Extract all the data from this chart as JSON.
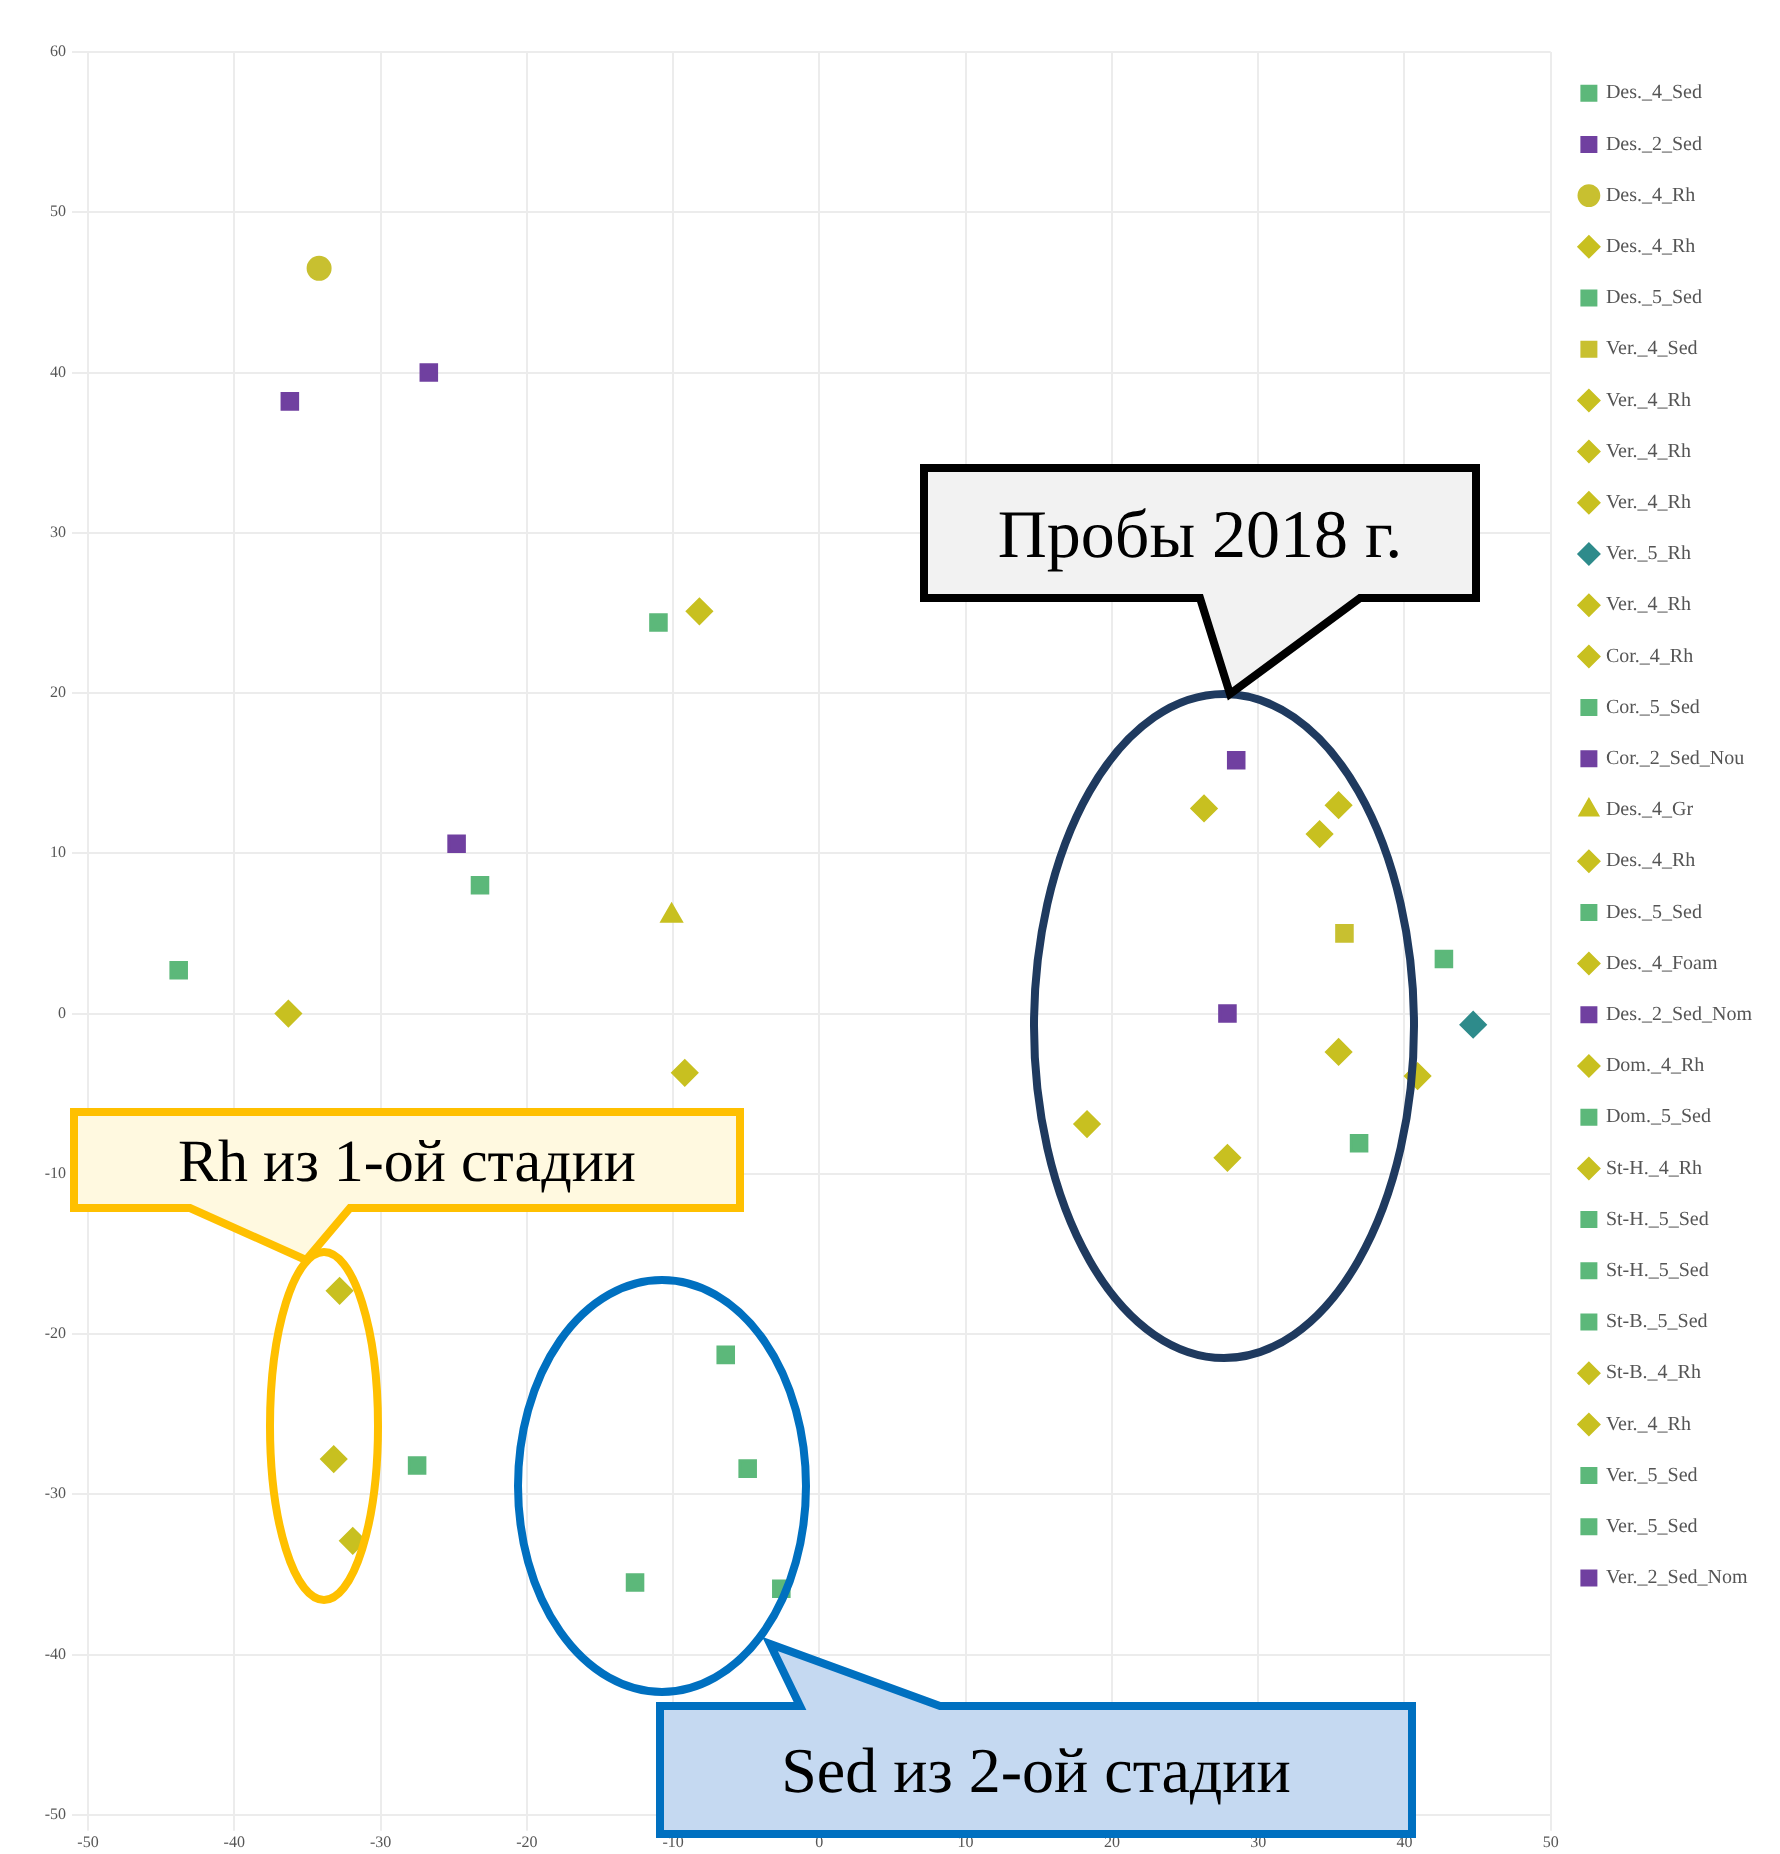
{
  "chart_data": {
    "type": "scatter",
    "xlim": [
      -50,
      50
    ],
    "xticks": [
      -50,
      -40,
      -30,
      -20,
      -10,
      0,
      10,
      20,
      30,
      40,
      50
    ],
    "ylim": [
      -50,
      60
    ],
    "yticks": [
      -50,
      -40,
      -30,
      -20,
      -10,
      0,
      10,
      20,
      30,
      40,
      50,
      60
    ],
    "grid": true,
    "legend": "right",
    "annotations": [
      "Пробы 2018 г.",
      "Rh из 1-ой стадии",
      "Sed из 2-ой стадии"
    ],
    "series": [
      {
        "name": "Des._4_Sed",
        "marker": "square",
        "color": "#5cb87a",
        "x": [
          -43.8
        ],
        "values": [
          2.7
        ]
      },
      {
        "name": "Des._2_Sed",
        "marker": "square",
        "color": "#7040a0",
        "x": [
          -36.2,
          -26.7
        ],
        "values": [
          38.2,
          40.0
        ]
      },
      {
        "name": "Des._4_Rh",
        "marker": "circle",
        "color": "#c8c030",
        "x": [
          -34.2
        ],
        "values": [
          46.5
        ]
      },
      {
        "name": "Des._4_Rh",
        "marker": "diamond",
        "color": "#c8c020",
        "x": [
          -36.3
        ],
        "values": [
          0
        ]
      },
      {
        "name": "Des._5_Sed",
        "marker": "square",
        "color": "#5cb87a",
        "x": [
          -23.2
        ],
        "values": [
          8.0
        ]
      },
      {
        "name": "Ver._4_Sed",
        "marker": "square",
        "color": "#c8c030",
        "x": [
          35.9
        ],
        "values": [
          5.0
        ]
      },
      {
        "name": "Ver._4_Rh",
        "marker": "diamond",
        "color": "#c8c020",
        "x": [
          26.3
        ],
        "values": [
          12.8
        ]
      },
      {
        "name": "Ver._4_Rh",
        "marker": "diamond",
        "color": "#c8c020",
        "x": [
          35.5
        ],
        "values": [
          13.0
        ]
      },
      {
        "name": "Ver._4_Rh",
        "marker": "diamond",
        "color": "#c8c020",
        "x": [
          34.2
        ],
        "values": [
          11.2
        ]
      },
      {
        "name": "Ver._5_Rh",
        "marker": "diamond",
        "color": "#2e8b8b",
        "x": [
          44.7
        ],
        "values": [
          -0.7
        ]
      },
      {
        "name": "Ver._4_Rh",
        "marker": "diamond",
        "color": "#c8c020",
        "x": [
          35.5
        ],
        "values": [
          -2.4
        ]
      },
      {
        "name": "Cor._4_Rh",
        "marker": "diamond",
        "color": "#c8c020",
        "x": [
          -8.2
        ],
        "values": [
          25.1
        ]
      },
      {
        "name": "Cor._5_Sed",
        "marker": "square",
        "color": "#5cb87a",
        "x": [
          -11.0
        ],
        "values": [
          24.4
        ]
      },
      {
        "name": "Cor._2_Sed_Nou",
        "marker": "square",
        "color": "#7040a0",
        "x": [
          -24.8
        ],
        "values": [
          10.6
        ]
      },
      {
        "name": "Des._4_Gr",
        "marker": "triangle",
        "color": "#c8c020",
        "x": [
          -10.1
        ],
        "values": [
          6.1
        ]
      },
      {
        "name": "Des._4_Rh",
        "marker": "diamond",
        "color": "#c8c020",
        "x": [
          -9.2
        ],
        "values": [
          -3.7
        ]
      },
      {
        "name": "Des._5_Sed",
        "marker": "square",
        "color": "#5cb87a",
        "x": [
          -27.5
        ],
        "values": [
          -28.2
        ]
      },
      {
        "name": "Des._4_Foam",
        "marker": "diamond",
        "color": "#c8c020",
        "x": [
          18.3
        ],
        "values": [
          -6.9
        ]
      },
      {
        "name": "Des._2_Sed_Nom",
        "marker": "square",
        "color": "#7040a0",
        "x": [
          27.9
        ],
        "values": [
          0
        ]
      },
      {
        "name": "Dom._4_Rh",
        "marker": "diamond",
        "color": "#c8c020",
        "x": [
          -32.8
        ],
        "values": [
          -17.3
        ]
      },
      {
        "name": "Dom._5_Sed",
        "marker": "square",
        "color": "#5cb87a",
        "x": [
          -6.4
        ],
        "values": [
          -21.3
        ]
      },
      {
        "name": "St-H._4_Rh",
        "marker": "diamond",
        "color": "#c8c020",
        "x": [
          -33.2
        ],
        "values": [
          -27.8
        ]
      },
      {
        "name": "St-H._5_Sed",
        "marker": "square",
        "color": "#5cb87a",
        "x": [
          -4.9
        ],
        "values": [
          -28.4
        ]
      },
      {
        "name": "St-H._5_Sed",
        "marker": "square",
        "color": "#5cb87a",
        "x": [
          -12.6
        ],
        "values": [
          -35.5
        ]
      },
      {
        "name": "St-B._5_Sed",
        "marker": "square",
        "color": "#5cb87a",
        "x": [
          -2.6
        ],
        "values": [
          -35.9
        ]
      },
      {
        "name": "St-B._4_Rh",
        "marker": "diamond",
        "color": "#c8c020",
        "x": [
          -31.9
        ],
        "values": [
          -32.9
        ]
      },
      {
        "name": "Ver._4_Rh",
        "marker": "diamond",
        "color": "#c8c020",
        "x": [
          40.9,
          27.9
        ],
        "values": [
          -3.9,
          -9.0
        ]
      },
      {
        "name": "Ver._5_Sed",
        "marker": "square",
        "color": "#5cb87a",
        "x": [
          42.7
        ],
        "values": [
          3.4
        ]
      },
      {
        "name": "Ver._5_Sed",
        "marker": "square",
        "color": "#5cb87a",
        "x": [
          36.9
        ],
        "values": [
          -8.1
        ]
      },
      {
        "name": "Ver._2_Sed_Nom",
        "marker": "square",
        "color": "#7040a0",
        "x": [
          28.5
        ],
        "values": [
          15.8
        ]
      }
    ]
  }
}
